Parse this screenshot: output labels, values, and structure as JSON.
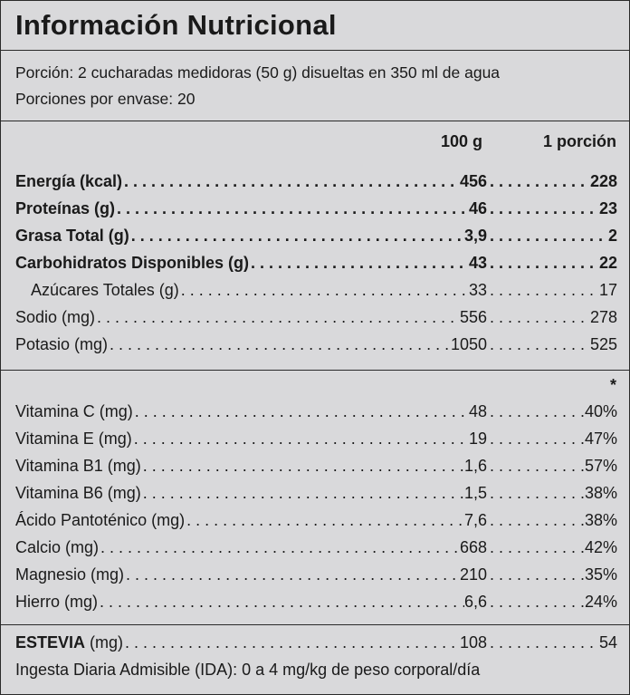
{
  "title": "Información Nutricional",
  "serving": {
    "portion": "Porción: 2 cucharadas medidoras (50 g) disueltas en 350 ml de agua",
    "per_container": "Porciones por envase: 20"
  },
  "columns": {
    "per100": "100 g",
    "perportion": "1 porción"
  },
  "macros": [
    {
      "label": "Energía (kcal)",
      "v100": "456",
      "vport": "228",
      "bold": true
    },
    {
      "label": "Proteínas (g)",
      "v100": "46",
      "vport": "23",
      "bold": true
    },
    {
      "label": "Grasa Total (g)",
      "v100": "3,9",
      "vport": "2",
      "bold": true
    },
    {
      "label": "Carbohidratos Disponibles (g)",
      "v100": "43",
      "vport": "22",
      "bold": true
    },
    {
      "label": "Azúcares Totales (g)",
      "v100": "33",
      "vport": "17",
      "indent": true
    },
    {
      "label": "Sodio (mg)",
      "v100": "556",
      "vport": "278"
    },
    {
      "label": "Potasio (mg)",
      "v100": "1050",
      "vport": "525"
    }
  ],
  "vitamins_marker": "*",
  "vitamins": [
    {
      "label": "Vitamina C (mg)",
      "v100": "48",
      "vport": "40%"
    },
    {
      "label": "Vitamina E (mg)",
      "v100": "19",
      "vport": "47%"
    },
    {
      "label": "Vitamina B1 (mg)",
      "v100": "1,6",
      "vport": "57%"
    },
    {
      "label": "Vitamina B6 (mg)",
      "v100": "1,5",
      "vport": "38%"
    },
    {
      "label": "Ácido Pantoténico (mg)",
      "v100": "7,6",
      "vport": "38%"
    },
    {
      "label": "Calcio (mg)",
      "v100": "668",
      "vport": "42%"
    },
    {
      "label": "Magnesio (mg)",
      "v100": "210",
      "vport": "35%"
    },
    {
      "label": "Hierro (mg)",
      "v100": "6,6",
      "vport": "24%"
    }
  ],
  "stevia": {
    "label_bold": "ESTEVIA",
    "label_rest": " (mg)",
    "v100": "108",
    "vport": "54"
  },
  "ida": "Ingesta Diaria Admisible (IDA): 0 a 4 mg/kg de peso corporal/día"
}
